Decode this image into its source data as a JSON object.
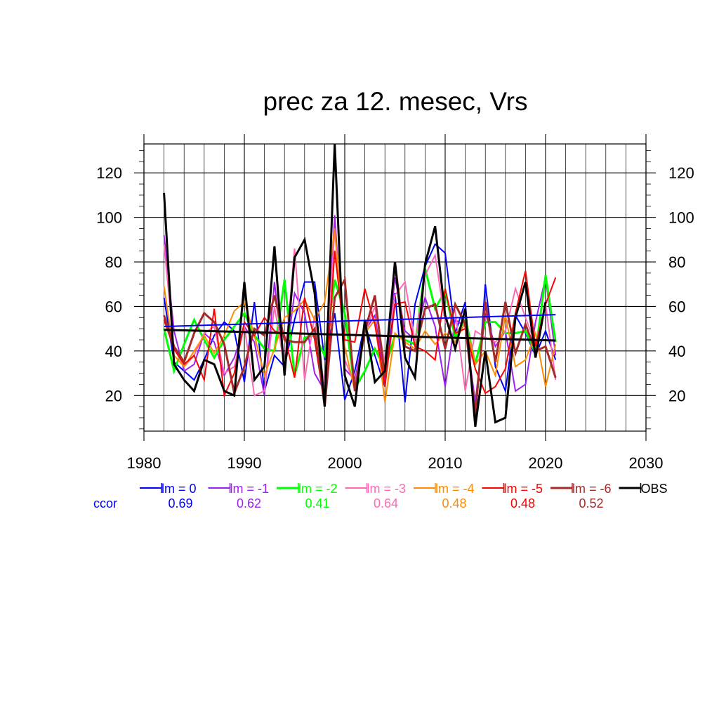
{
  "chart_data": {
    "type": "line",
    "title": "prec za 12. mesec, Vrs",
    "xlim": [
      1980,
      2030
    ],
    "ylim": [
      4,
      133
    ],
    "x_ticks": [
      1980,
      1990,
      2000,
      2010,
      2020,
      2030
    ],
    "y_ticks": [
      20,
      40,
      60,
      80,
      100,
      120
    ],
    "grid": true,
    "legend_position": "bottom",
    "legend_row_label": "ccor",
    "x": [
      1982,
      1983,
      1984,
      1985,
      1986,
      1987,
      1988,
      1989,
      1990,
      1991,
      1992,
      1993,
      1994,
      1995,
      1996,
      1997,
      1998,
      1999,
      2000,
      2001,
      2002,
      2003,
      2004,
      2005,
      2006,
      2007,
      2008,
      2009,
      2010,
      2011,
      2012,
      2013,
      2014,
      2015,
      2016,
      2017,
      2018,
      2019,
      2020,
      2021
    ],
    "series": [
      {
        "name": "lm = 0",
        "color": "#0000ff",
        "width": 2,
        "ccor": "0.69",
        "values": [
          64,
          35,
          31,
          27,
          36,
          47,
          53,
          49,
          26,
          62,
          22,
          38,
          33,
          54,
          71,
          71,
          36,
          57,
          18,
          31,
          52,
          38,
          24,
          66,
          17,
          61,
          78,
          88,
          84,
          48,
          62,
          7,
          70,
          33,
          22,
          56,
          48,
          38,
          49,
          36
        ],
        "trend": [
          51,
          56.3
        ]
      },
      {
        "name": "lm = -1",
        "color": "#a020f0",
        "width": 2,
        "ccor": "0.62",
        "values": [
          92,
          49,
          31,
          34,
          48,
          44,
          29,
          37,
          51,
          44,
          20,
          71,
          31,
          66,
          57,
          30,
          22,
          101,
          32,
          27,
          49,
          56,
          27,
          73,
          49,
          45,
          64,
          51,
          24,
          54,
          51,
          17,
          57,
          42,
          49,
          22,
          25,
          53,
          73,
          38
        ],
        "trend": null
      },
      {
        "name": "lm = -2",
        "color": "#00ff00",
        "width": 3,
        "ccor": "0.41",
        "values": [
          50,
          31,
          43,
          54,
          45,
          37,
          45,
          51,
          57,
          47,
          41,
          40,
          72,
          29,
          46,
          47,
          38,
          72,
          57,
          23,
          31,
          41,
          32,
          47,
          45,
          43,
          77,
          59,
          67,
          46,
          55,
          34,
          53,
          53,
          48,
          48,
          49,
          39,
          74,
          44
        ],
        "trend": null
      },
      {
        "name": "lm = -3",
        "color": "#ff69b4",
        "width": 2,
        "ccor": "0.64",
        "values": [
          88,
          41,
          33,
          38,
          48,
          51,
          30,
          33,
          51,
          20,
          22,
          60,
          33,
          86,
          27,
          56,
          23,
          95,
          36,
          25,
          48,
          60,
          34,
          65,
          71,
          44,
          74,
          83,
          53,
          58,
          22,
          49,
          46,
          44,
          49,
          68,
          55,
          43,
          61,
          27
        ],
        "trend": null
      },
      {
        "name": "lm = -4",
        "color": "#ff8c00",
        "width": 2,
        "ccor": "0.48",
        "values": [
          69,
          38,
          33,
          40,
          47,
          39,
          47,
          58,
          62,
          47,
          29,
          41,
          55,
          58,
          63,
          54,
          62,
          95,
          42,
          22,
          48,
          54,
          17,
          48,
          44,
          41,
          49,
          43,
          48,
          44,
          53,
          34,
          40,
          29,
          56,
          33,
          36,
          48,
          24,
          43
        ],
        "trend": null
      },
      {
        "name": "lm = -5",
        "color": "#ff0000",
        "width": 2,
        "ccor": "0.48",
        "values": [
          54,
          41,
          34,
          38,
          27,
          59,
          20,
          30,
          53,
          47,
          55,
          49,
          47,
          28,
          64,
          45,
          16,
          85,
          45,
          44,
          68,
          52,
          24,
          61,
          62,
          42,
          40,
          36,
          68,
          48,
          50,
          32,
          21,
          24,
          32,
          57,
          76,
          42,
          61,
          73
        ],
        "trend": null
      },
      {
        "name": "lm = -6",
        "color": "#a52a2a",
        "width": 3,
        "ccor": "0.52",
        "values": [
          56,
          42,
          35,
          48,
          57,
          53,
          43,
          21,
          33,
          50,
          47,
          65,
          45,
          44,
          44,
          50,
          15,
          64,
          72,
          22,
          49,
          65,
          28,
          80,
          42,
          40,
          59,
          61,
          41,
          61,
          52,
          12,
          62,
          35,
          62,
          39,
          52,
          40,
          42,
          28
        ],
        "trend": null
      },
      {
        "name": "OBS",
        "color": "#000000",
        "width": 3,
        "ccor": "",
        "values": [
          111,
          34,
          27,
          22,
          36,
          34,
          22,
          20,
          71,
          27,
          33,
          87,
          29,
          82,
          90,
          66,
          15,
          133,
          29,
          15,
          54,
          26,
          31,
          80,
          37,
          28,
          79,
          96,
          56,
          41,
          59,
          6,
          40,
          8,
          10,
          55,
          71,
          37,
          62,
          null
        ],
        "trend": [
          49.5,
          44.7
        ]
      }
    ]
  }
}
